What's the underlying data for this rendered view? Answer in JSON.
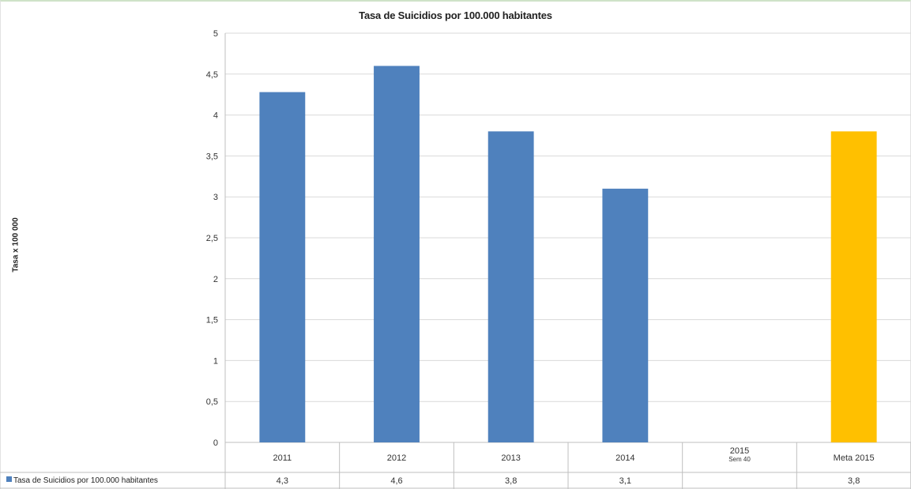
{
  "chart_data": {
    "type": "bar",
    "title": "Tasa de Suicidios por 100.000 habitantes",
    "ylabel": "Tasa x 100 000",
    "xlabel": "",
    "ylim": [
      0,
      5
    ],
    "yticks": [
      "0",
      "0,5",
      "1",
      "1,5",
      "2",
      "2,5",
      "3",
      "3,5",
      "4",
      "4,5",
      "5"
    ],
    "grid": true,
    "categories": [
      {
        "label": "2011",
        "sub": ""
      },
      {
        "label": "2012",
        "sub": ""
      },
      {
        "label": "2013",
        "sub": ""
      },
      {
        "label": "2014",
        "sub": ""
      },
      {
        "label": "2015",
        "sub": "Sem 40"
      },
      {
        "label": "Meta 2015",
        "sub": ""
      }
    ],
    "series": [
      {
        "name": "Tasa de Suicidios por 100.000 habitantes",
        "values": [
          4.28,
          4.6,
          3.8,
          3.1,
          null,
          3.8
        ],
        "table_values": [
          "4,3",
          "4,6",
          "3,8",
          "3,1",
          "",
          "3,8"
        ],
        "color": "#4f81bd",
        "highlight_color": "#ffc000",
        "highlight_index": 5
      }
    ]
  }
}
